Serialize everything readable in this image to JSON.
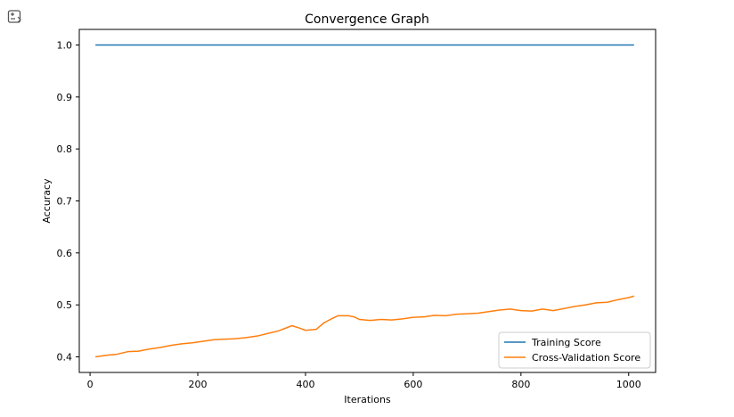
{
  "toolbar": {
    "icon": "output-toggle-icon"
  },
  "chart_data": {
    "type": "line",
    "title": "Convergence Graph",
    "xlabel": "Iterations",
    "ylabel": "Accuracy",
    "xlim": [
      -20,
      1050
    ],
    "ylim": [
      0.37,
      1.03
    ],
    "xticks": [
      0,
      200,
      400,
      600,
      800,
      1000
    ],
    "yticks": [
      0.4,
      0.5,
      0.6,
      0.7,
      0.8,
      0.9,
      1.0
    ],
    "ytick_labels": [
      "0.4",
      "0.5",
      "0.6",
      "0.7",
      "0.8",
      "0.9",
      "1.0"
    ],
    "grid": false,
    "legend": "lower-right",
    "series": [
      {
        "name": "Training Score",
        "color": "#1f77b4",
        "x": [
          10,
          1010
        ],
        "y": [
          1.0,
          1.0
        ]
      },
      {
        "name": "Cross-Validation Score",
        "color": "#ff7f0e",
        "x": [
          10,
          30,
          50,
          70,
          90,
          110,
          130,
          150,
          170,
          190,
          210,
          230,
          250,
          270,
          290,
          310,
          330,
          350,
          375,
          390,
          400,
          410,
          420,
          435,
          450,
          460,
          470,
          480,
          490,
          500,
          520,
          540,
          560,
          580,
          600,
          620,
          640,
          660,
          680,
          700,
          720,
          740,
          760,
          780,
          800,
          820,
          840,
          860,
          880,
          900,
          920,
          940,
          960,
          980,
          1000,
          1010
        ],
        "y": [
          0.4,
          0.403,
          0.405,
          0.41,
          0.411,
          0.415,
          0.418,
          0.422,
          0.425,
          0.427,
          0.43,
          0.433,
          0.434,
          0.435,
          0.437,
          0.44,
          0.445,
          0.45,
          0.46,
          0.455,
          0.451,
          0.452,
          0.453,
          0.466,
          0.474,
          0.479,
          0.479,
          0.479,
          0.477,
          0.472,
          0.47,
          0.472,
          0.471,
          0.473,
          0.476,
          0.477,
          0.48,
          0.479,
          0.482,
          0.483,
          0.484,
          0.487,
          0.49,
          0.492,
          0.489,
          0.488,
          0.492,
          0.489,
          0.493,
          0.497,
          0.5,
          0.504,
          0.505,
          0.51,
          0.514,
          0.517
        ]
      }
    ]
  }
}
